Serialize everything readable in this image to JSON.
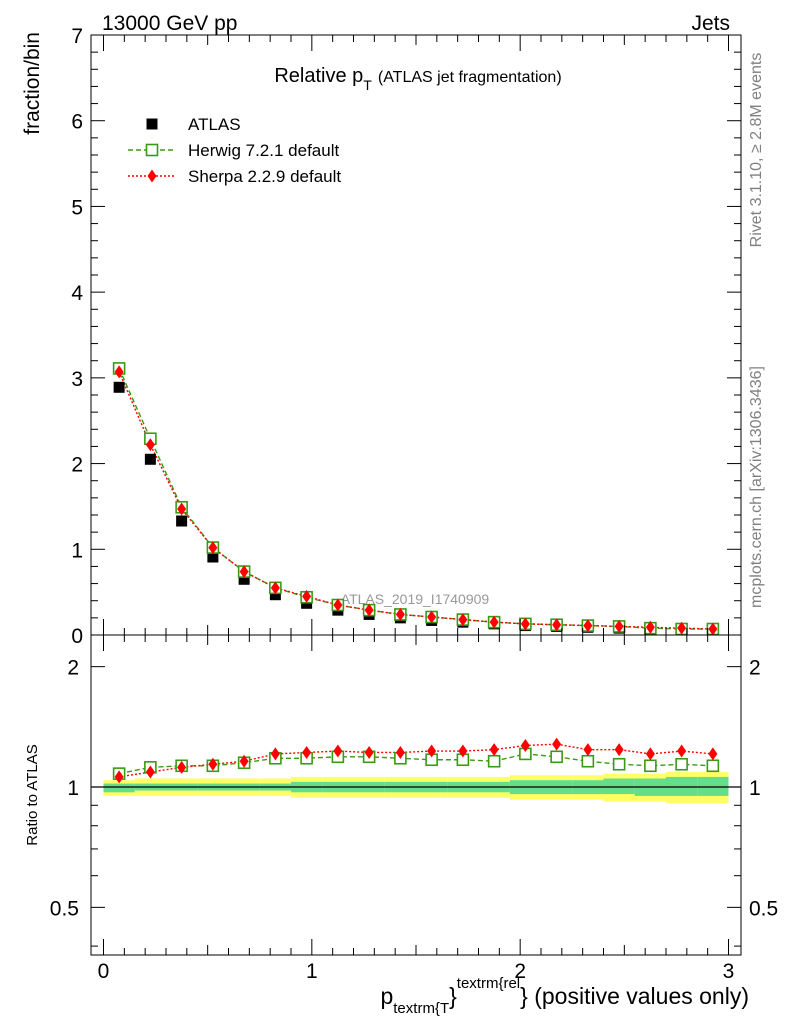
{
  "header": {
    "left": "13000 GeV pp",
    "right": "Jets"
  },
  "side_text": {
    "upper": "Rivet 3.1.10, ≥ 2.8M events",
    "lower": "mcplots.cern.ch [arXiv:1306.3436]"
  },
  "watermark": "ATLAS_2019_I1740909",
  "chart_data": [
    {
      "type": "scatter",
      "panel": "main",
      "title": {
        "main": "Relative p",
        "sub": "T",
        "rest": "(ATLAS jet fragmentation)"
      },
      "ylabel": "fraction/bin",
      "xlim": [
        -0.06,
        3.06
      ],
      "ylim": [
        0,
        7
      ],
      "yticks": [
        0,
        1,
        2,
        3,
        4,
        5,
        6,
        7
      ],
      "legend_position": "top-left",
      "x": [
        0.075,
        0.225,
        0.375,
        0.525,
        0.675,
        0.825,
        0.975,
        1.125,
        1.275,
        1.425,
        1.575,
        1.725,
        1.875,
        2.025,
        2.175,
        2.325,
        2.475,
        2.625,
        2.775,
        2.925
      ],
      "series": [
        {
          "name": "ATLAS",
          "color": "#000000",
          "marker": "filled-square",
          "values": [
            2.89,
            2.05,
            1.33,
            0.91,
            0.65,
            0.47,
            0.37,
            0.29,
            0.24,
            0.2,
            0.17,
            0.15,
            0.13,
            0.11,
            0.1,
            0.09,
            0.08,
            0.07,
            0.06,
            0.06
          ]
        },
        {
          "name": "Herwig 7.2.1 default",
          "color": "#3a9a14",
          "marker": "open-square",
          "line": "dashed",
          "values": [
            3.11,
            2.29,
            1.49,
            1.02,
            0.74,
            0.55,
            0.44,
            0.35,
            0.29,
            0.24,
            0.21,
            0.18,
            0.15,
            0.13,
            0.12,
            0.11,
            0.1,
            0.08,
            0.07,
            0.07
          ]
        },
        {
          "name": "Sherpa 2.2.9 default",
          "color": "#ff0000",
          "marker": "filled-diamond",
          "line": "dotted",
          "values": [
            3.07,
            2.22,
            1.47,
            1.02,
            0.74,
            0.55,
            0.45,
            0.35,
            0.29,
            0.24,
            0.21,
            0.18,
            0.15,
            0.13,
            0.12,
            0.11,
            0.1,
            0.09,
            0.08,
            0.07
          ]
        }
      ]
    },
    {
      "type": "scatter",
      "panel": "ratio",
      "ylabel": "Ratio to ATLAS",
      "xlabel": {
        "p": "p",
        "sub": "textrm{T",
        "close": "}",
        "sup": "textrm{rel",
        "rest": "} (positive values only)"
      },
      "xlim": [
        -0.06,
        3.06
      ],
      "ylim": [
        0.38,
        2.4
      ],
      "xticks": [
        0,
        1,
        2,
        3
      ],
      "xtick_labels": [
        "0",
        "1",
        "2",
        "3"
      ],
      "yticks": [
        0.5,
        1,
        2
      ],
      "ytick_labels": [
        "0.5",
        "1",
        "2"
      ],
      "log_y": true,
      "x": [
        0.075,
        0.225,
        0.375,
        0.525,
        0.675,
        0.825,
        0.975,
        1.125,
        1.275,
        1.425,
        1.575,
        1.725,
        1.875,
        2.025,
        2.175,
        2.325,
        2.475,
        2.625,
        2.775,
        2.925
      ],
      "band_yellow": {
        "lo": [
          0.95,
          0.95,
          0.95,
          0.95,
          0.95,
          0.95,
          0.94,
          0.94,
          0.94,
          0.94,
          0.94,
          0.94,
          0.94,
          0.93,
          0.93,
          0.93,
          0.92,
          0.92,
          0.91,
          0.91
        ],
        "hi": [
          1.04,
          1.05,
          1.05,
          1.05,
          1.05,
          1.05,
          1.06,
          1.06,
          1.06,
          1.06,
          1.06,
          1.06,
          1.06,
          1.07,
          1.07,
          1.07,
          1.08,
          1.08,
          1.09,
          1.09
        ],
        "color": "#ffff66"
      },
      "band_green": {
        "lo": [
          0.97,
          0.98,
          0.98,
          0.98,
          0.98,
          0.98,
          0.97,
          0.97,
          0.97,
          0.97,
          0.97,
          0.97,
          0.97,
          0.96,
          0.96,
          0.96,
          0.96,
          0.95,
          0.95,
          0.95
        ],
        "hi": [
          1.02,
          1.02,
          1.02,
          1.02,
          1.02,
          1.02,
          1.03,
          1.03,
          1.03,
          1.03,
          1.03,
          1.03,
          1.03,
          1.04,
          1.04,
          1.04,
          1.05,
          1.05,
          1.06,
          1.06
        ],
        "color": "#66dd88"
      },
      "series": [
        {
          "name": "Herwig 7.2.1 default",
          "color": "#3a9a14",
          "marker": "open-square",
          "line": "dashed",
          "values": [
            1.08,
            1.12,
            1.13,
            1.13,
            1.15,
            1.18,
            1.18,
            1.19,
            1.19,
            1.18,
            1.17,
            1.17,
            1.16,
            1.21,
            1.19,
            1.16,
            1.14,
            1.13,
            1.14,
            1.13
          ]
        },
        {
          "name": "Sherpa 2.2.9 default",
          "color": "#ff0000",
          "marker": "filled-diamond",
          "line": "dotted",
          "values": [
            1.06,
            1.09,
            1.12,
            1.14,
            1.16,
            1.21,
            1.22,
            1.23,
            1.22,
            1.22,
            1.23,
            1.23,
            1.24,
            1.27,
            1.28,
            1.24,
            1.24,
            1.21,
            1.23,
            1.21
          ]
        }
      ]
    }
  ]
}
